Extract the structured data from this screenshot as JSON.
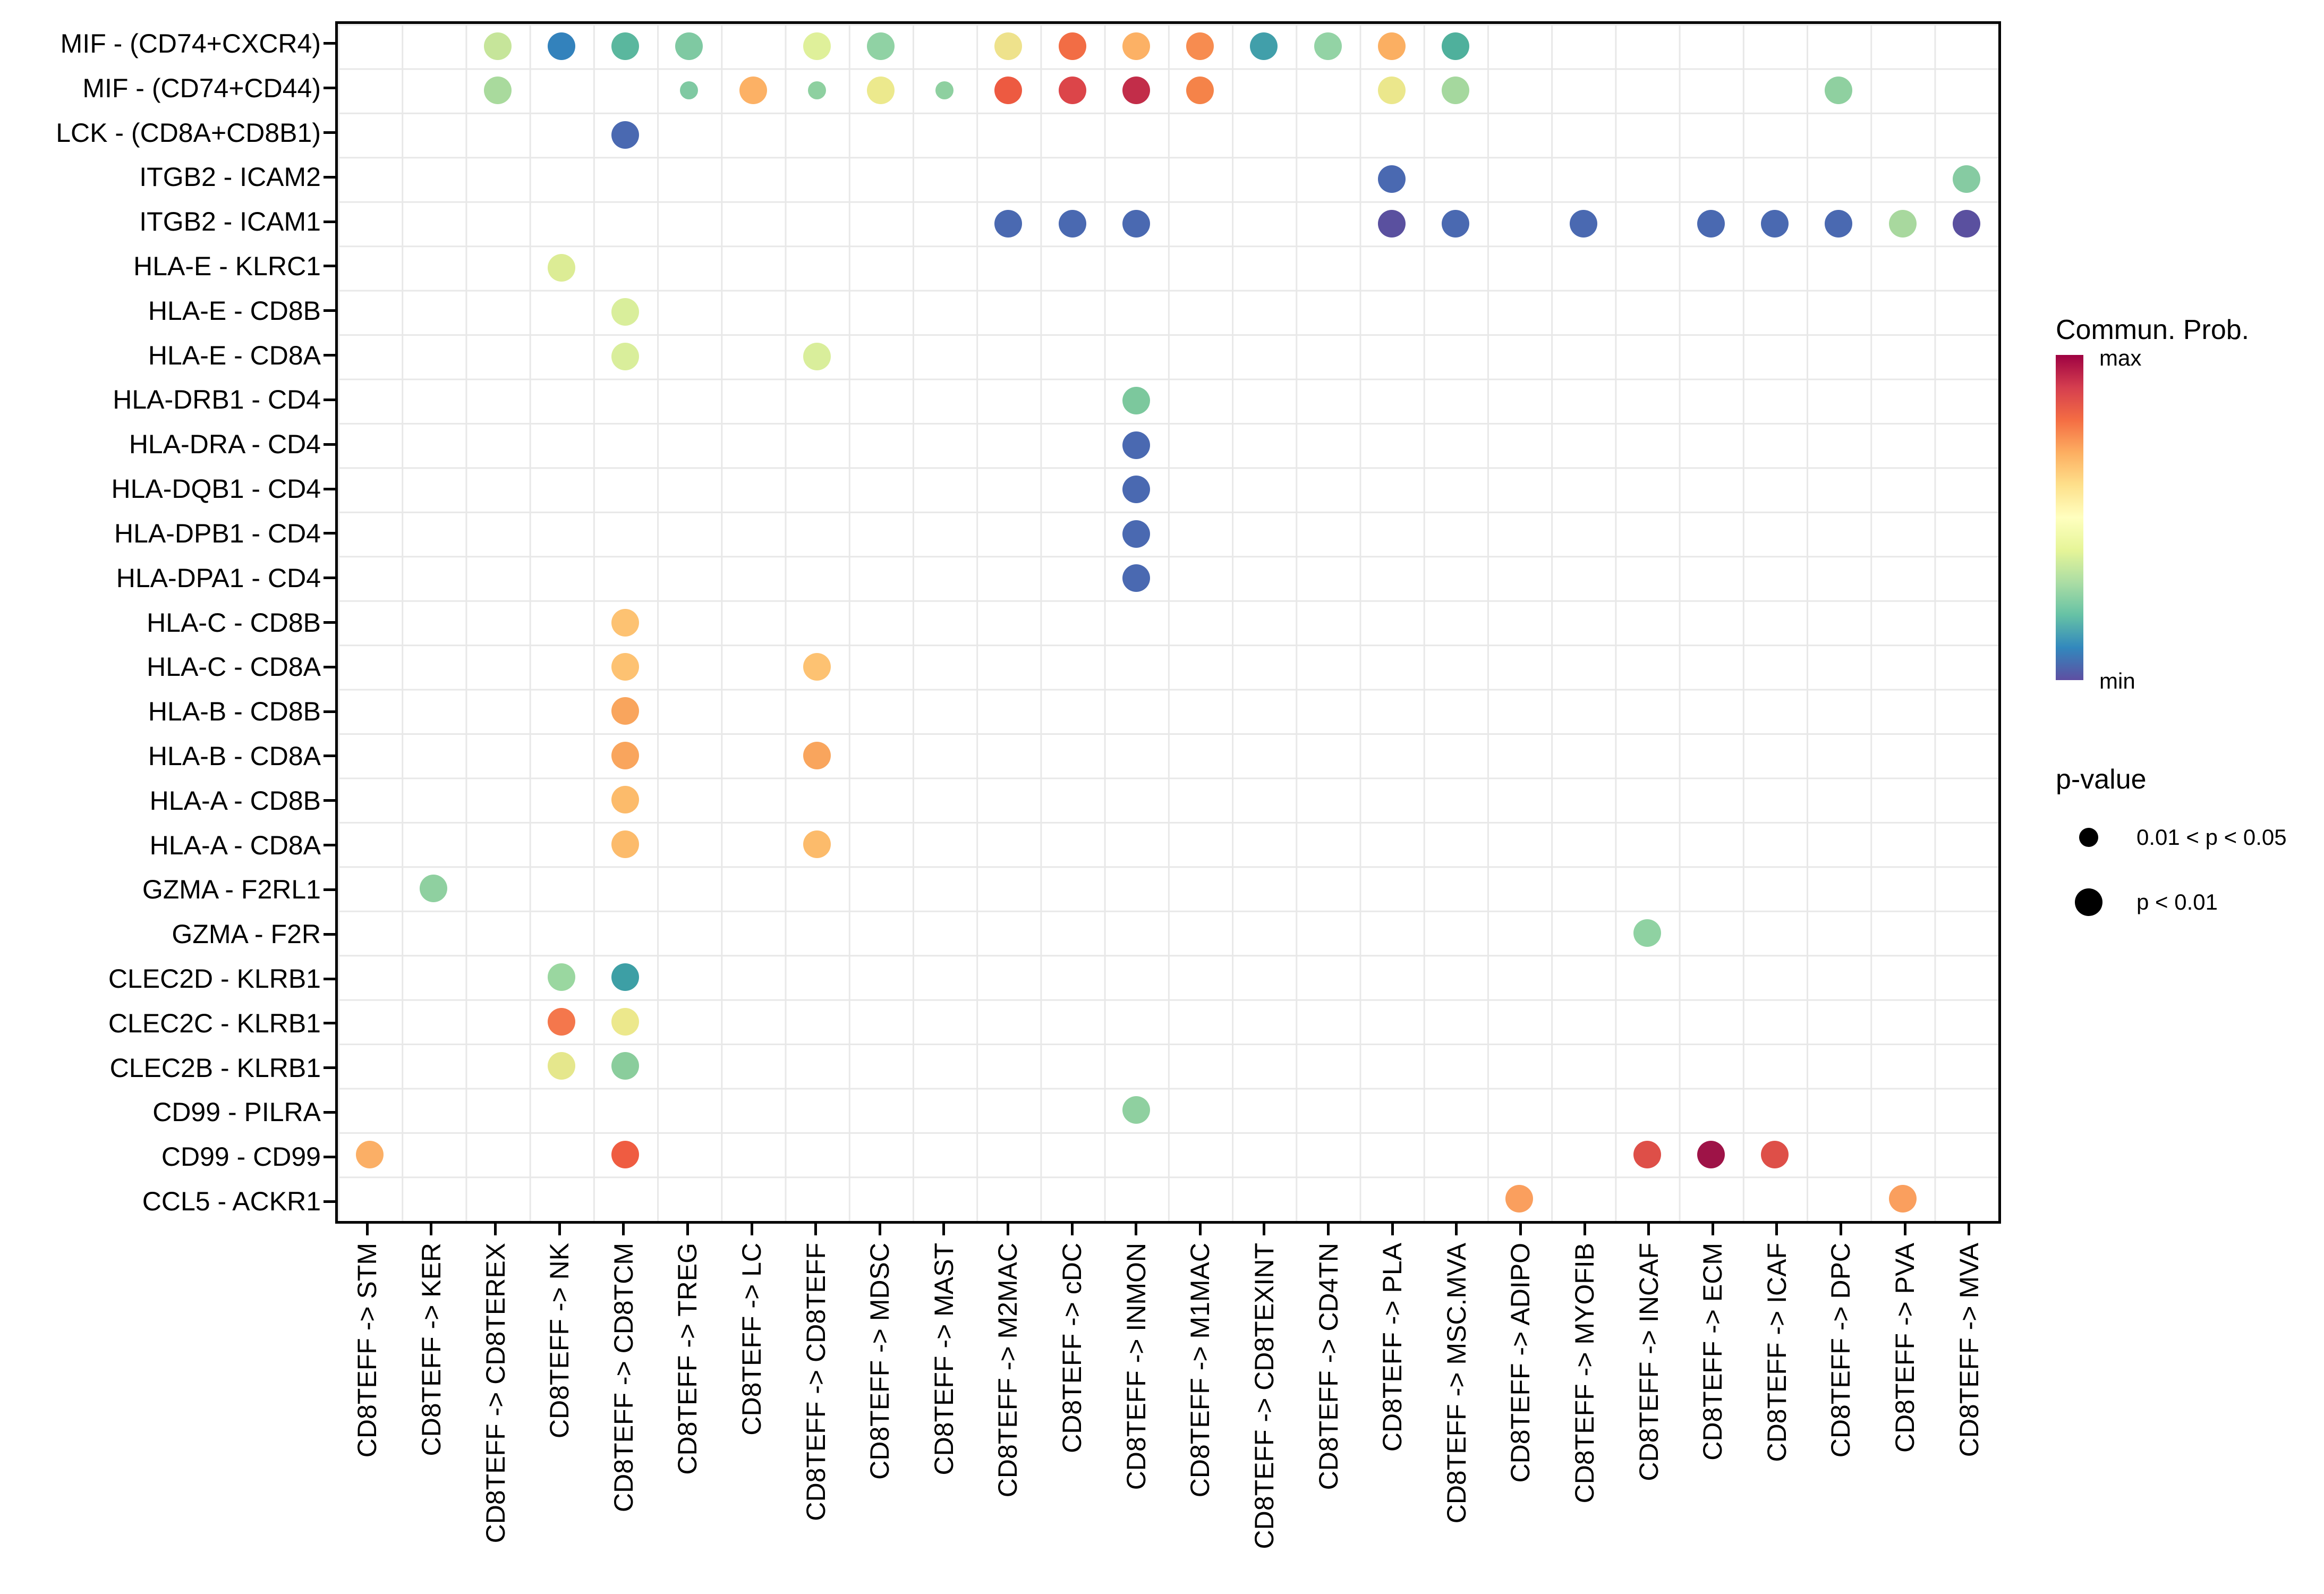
{
  "chart_data": {
    "type": "scatter",
    "title": "",
    "xlabel": "",
    "ylabel": "",
    "grid": true,
    "legend_position": "right",
    "x_categories": [
      "CD8TEFF -> STM",
      "CD8TEFF -> KER",
      "CD8TEFF -> CD8TEREX",
      "CD8TEFF -> NK",
      "CD8TEFF -> CD8TCM",
      "CD8TEFF -> TREG",
      "CD8TEFF -> LC",
      "CD8TEFF -> CD8TEFF",
      "CD8TEFF -> MDSC",
      "CD8TEFF -> MAST",
      "CD8TEFF -> M2MAC",
      "CD8TEFF -> cDC",
      "CD8TEFF -> INMON",
      "CD8TEFF -> M1MAC",
      "CD8TEFF -> CD8TEXINT",
      "CD8TEFF -> CD4TN",
      "CD8TEFF -> PLA",
      "CD8TEFF -> MSC.MVA",
      "CD8TEFF -> ADIPO",
      "CD8TEFF -> MYOFIB",
      "CD8TEFF -> INCAF",
      "CD8TEFF -> ECM",
      "CD8TEFF -> ICAF",
      "CD8TEFF -> DPC",
      "CD8TEFF -> PVA",
      "CD8TEFF -> MVA"
    ],
    "y_categories": [
      "MIF - (CD74+CXCR4)",
      "MIF - (CD74+CD44)",
      "LCK - (CD8A+CD8B1)",
      "ITGB2 - ICAM2",
      "ITGB2 - ICAM1",
      "HLA-E - KLRC1",
      "HLA-E - CD8B",
      "HLA-E - CD8A",
      "HLA-DRB1 - CD4",
      "HLA-DRA - CD4",
      "HLA-DQB1 - CD4",
      "HLA-DPB1 - CD4",
      "HLA-DPA1 - CD4",
      "HLA-C - CD8B",
      "HLA-C - CD8A",
      "HLA-B - CD8B",
      "HLA-B - CD8A",
      "HLA-A - CD8B",
      "HLA-A - CD8A",
      "GZMA - F2RL1",
      "GZMA - F2R",
      "CLEC2D - KLRB1",
      "CLEC2C - KLRB1",
      "CLEC2B - KLRB1",
      "CD99 - PILRA",
      "CD99 - CD99",
      "CCL5 - ACKR1"
    ],
    "color_scale": {
      "title": "Commun. Prob.",
      "max_label": "max",
      "min_label": "min",
      "palette_top_to_bottom": [
        "#9E0142",
        "#D53E4F",
        "#F46D43",
        "#FDAE61",
        "#FEE08B",
        "#FFFFBF",
        "#E6F598",
        "#ABDDA4",
        "#66C2A5",
        "#3288BD",
        "#5E4FA2"
      ]
    },
    "size_legend": {
      "title": "p-value",
      "items": [
        {
          "label": "0.01 < p < 0.05",
          "size": "small"
        },
        {
          "label": "p < 0.01",
          "size": "large"
        }
      ]
    },
    "points": [
      {
        "col": 3,
        "row": 1,
        "color": "#c6e59a",
        "p": "p < 0.01"
      },
      {
        "col": 4,
        "row": 1,
        "color": "#3382bc",
        "p": "p < 0.01"
      },
      {
        "col": 5,
        "row": 1,
        "color": "#5ab79e",
        "p": "p < 0.01"
      },
      {
        "col": 6,
        "row": 1,
        "color": "#7fc9a2",
        "p": "p < 0.01"
      },
      {
        "col": 8,
        "row": 1,
        "color": "#dff09a",
        "p": "p < 0.01"
      },
      {
        "col": 9,
        "row": 1,
        "color": "#90d2a4",
        "p": "p < 0.01"
      },
      {
        "col": 11,
        "row": 1,
        "color": "#eee28c",
        "p": "p < 0.01"
      },
      {
        "col": 12,
        "row": 1,
        "color": "#f26d45",
        "p": "p < 0.01"
      },
      {
        "col": 13,
        "row": 1,
        "color": "#fcb165",
        "p": "p < 0.01"
      },
      {
        "col": 14,
        "row": 1,
        "color": "#f78c50",
        "p": "p < 0.01"
      },
      {
        "col": 15,
        "row": 1,
        "color": "#419faa",
        "p": "p < 0.01"
      },
      {
        "col": 16,
        "row": 1,
        "color": "#93d3a5",
        "p": "p < 0.01"
      },
      {
        "col": 17,
        "row": 1,
        "color": "#fbaf62",
        "p": "p < 0.01"
      },
      {
        "col": 18,
        "row": 1,
        "color": "#4fb09c",
        "p": "p < 0.01"
      },
      {
        "col": 3,
        "row": 2,
        "color": "#a9da9d",
        "p": "p < 0.01"
      },
      {
        "col": 6,
        "row": 2,
        "color": "#7fc9a2",
        "p": "0.01 < p < 0.05"
      },
      {
        "col": 7,
        "row": 2,
        "color": "#fcb165",
        "p": "p < 0.01"
      },
      {
        "col": 8,
        "row": 2,
        "color": "#8ed0a0",
        "p": "0.01 < p < 0.05"
      },
      {
        "col": 9,
        "row": 2,
        "color": "#ece98d",
        "p": "p < 0.01"
      },
      {
        "col": 10,
        "row": 2,
        "color": "#8ed0a0",
        "p": "0.01 < p < 0.05"
      },
      {
        "col": 11,
        "row": 2,
        "color": "#ed5a41",
        "p": "p < 0.01"
      },
      {
        "col": 12,
        "row": 2,
        "color": "#dc4549",
        "p": "p < 0.01"
      },
      {
        "col": 13,
        "row": 2,
        "color": "#c22d49",
        "p": "p < 0.01"
      },
      {
        "col": 14,
        "row": 2,
        "color": "#f58349",
        "p": "p < 0.01"
      },
      {
        "col": 17,
        "row": 2,
        "color": "#ebe78c",
        "p": "p < 0.01"
      },
      {
        "col": 18,
        "row": 2,
        "color": "#a5d89e",
        "p": "p < 0.01"
      },
      {
        "col": 24,
        "row": 2,
        "color": "#8fd0a0",
        "p": "p < 0.01"
      },
      {
        "col": 5,
        "row": 3,
        "color": "#4a69b1",
        "p": "p < 0.01"
      },
      {
        "col": 17,
        "row": 4,
        "color": "#4a69b1",
        "p": "p < 0.01"
      },
      {
        "col": 26,
        "row": 4,
        "color": "#86cba2",
        "p": "p < 0.01"
      },
      {
        "col": 11,
        "row": 5,
        "color": "#4a69b1",
        "p": "p < 0.01"
      },
      {
        "col": 12,
        "row": 5,
        "color": "#4a69b1",
        "p": "p < 0.01"
      },
      {
        "col": 13,
        "row": 5,
        "color": "#4a69b1",
        "p": "p < 0.01"
      },
      {
        "col": 17,
        "row": 5,
        "color": "#5a509f",
        "p": "p < 0.01"
      },
      {
        "col": 18,
        "row": 5,
        "color": "#4a69b1",
        "p": "p < 0.01"
      },
      {
        "col": 20,
        "row": 5,
        "color": "#4a69b1",
        "p": "p < 0.01"
      },
      {
        "col": 22,
        "row": 5,
        "color": "#4a69b1",
        "p": "p < 0.01"
      },
      {
        "col": 23,
        "row": 5,
        "color": "#4a69b1",
        "p": "p < 0.01"
      },
      {
        "col": 24,
        "row": 5,
        "color": "#4a69b1",
        "p": "p < 0.01"
      },
      {
        "col": 25,
        "row": 5,
        "color": "#a8d89e",
        "p": "p < 0.01"
      },
      {
        "col": 26,
        "row": 5,
        "color": "#5a509f",
        "p": "p < 0.01"
      },
      {
        "col": 4,
        "row": 6,
        "color": "#dcec95",
        "p": "p < 0.01"
      },
      {
        "col": 5,
        "row": 7,
        "color": "#d9ee9b",
        "p": "p < 0.01"
      },
      {
        "col": 5,
        "row": 8,
        "color": "#d9ee9b",
        "p": "p < 0.01"
      },
      {
        "col": 8,
        "row": 8,
        "color": "#d9ee9b",
        "p": "p < 0.01"
      },
      {
        "col": 13,
        "row": 9,
        "color": "#7cc89d",
        "p": "p < 0.01"
      },
      {
        "col": 13,
        "row": 10,
        "color": "#4a69b1",
        "p": "p < 0.01"
      },
      {
        "col": 13,
        "row": 11,
        "color": "#4a69b1",
        "p": "p < 0.01"
      },
      {
        "col": 13,
        "row": 12,
        "color": "#4a69b1",
        "p": "p < 0.01"
      },
      {
        "col": 13,
        "row": 13,
        "color": "#4a69b1",
        "p": "p < 0.01"
      },
      {
        "col": 5,
        "row": 14,
        "color": "#fdc272",
        "p": "p < 0.01"
      },
      {
        "col": 5,
        "row": 15,
        "color": "#fdc272",
        "p": "p < 0.01"
      },
      {
        "col": 8,
        "row": 15,
        "color": "#fdc272",
        "p": "p < 0.01"
      },
      {
        "col": 5,
        "row": 16,
        "color": "#f9a55d",
        "p": "p < 0.01"
      },
      {
        "col": 5,
        "row": 17,
        "color": "#f9a55d",
        "p": "p < 0.01"
      },
      {
        "col": 8,
        "row": 17,
        "color": "#f9a55d",
        "p": "p < 0.01"
      },
      {
        "col": 5,
        "row": 18,
        "color": "#fcbb6b",
        "p": "p < 0.01"
      },
      {
        "col": 5,
        "row": 19,
        "color": "#fcbb6b",
        "p": "p < 0.01"
      },
      {
        "col": 8,
        "row": 19,
        "color": "#fcbb6b",
        "p": "p < 0.01"
      },
      {
        "col": 2,
        "row": 20,
        "color": "#8fd0a0",
        "p": "p < 0.01"
      },
      {
        "col": 21,
        "row": 21,
        "color": "#8fd2a2",
        "p": "p < 0.01"
      },
      {
        "col": 4,
        "row": 22,
        "color": "#9ad7a0",
        "p": "p < 0.01"
      },
      {
        "col": 5,
        "row": 22,
        "color": "#3d9fa5",
        "p": "p < 0.01"
      },
      {
        "col": 4,
        "row": 23,
        "color": "#f4774c",
        "p": "p < 0.01"
      },
      {
        "col": 5,
        "row": 23,
        "color": "#ece88c",
        "p": "p < 0.01"
      },
      {
        "col": 4,
        "row": 24,
        "color": "#e5e78c",
        "p": "p < 0.01"
      },
      {
        "col": 5,
        "row": 24,
        "color": "#8acd9c",
        "p": "p < 0.01"
      },
      {
        "col": 13,
        "row": 25,
        "color": "#8fd0a0",
        "p": "p < 0.01"
      },
      {
        "col": 1,
        "row": 26,
        "color": "#fbaf66",
        "p": "p < 0.01"
      },
      {
        "col": 5,
        "row": 26,
        "color": "#ef5c41",
        "p": "p < 0.01"
      },
      {
        "col": 21,
        "row": 26,
        "color": "#de4f48",
        "p": "p < 0.01"
      },
      {
        "col": 22,
        "row": 26,
        "color": "#9e1347",
        "p": "p < 0.01"
      },
      {
        "col": 23,
        "row": 26,
        "color": "#de4f48",
        "p": "p < 0.01"
      },
      {
        "col": 19,
        "row": 27,
        "color": "#fa9f5e",
        "p": "p < 0.01"
      },
      {
        "col": 25,
        "row": 27,
        "color": "#fa9f5e",
        "p": "p < 0.01"
      }
    ]
  },
  "panel": {
    "background": "#ffffff",
    "grid_color": "#e8e8e8",
    "border_color": "#000000",
    "tick_color": "#000000",
    "text_color": "#000000"
  }
}
